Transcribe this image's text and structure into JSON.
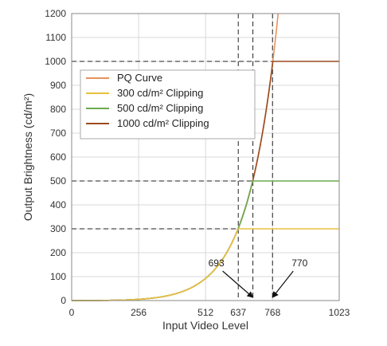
{
  "chart_data": {
    "type": "line",
    "title": "",
    "xlabel": "Input Video Level",
    "ylabel": "Output Brightness (cd/m²)",
    "xlim": [
      0,
      1023
    ],
    "ylim": [
      0,
      1200
    ],
    "x_ticks": [
      0,
      256,
      512,
      637,
      768,
      1023
    ],
    "y_ticks": [
      0,
      100,
      200,
      300,
      400,
      500,
      600,
      700,
      800,
      900,
      1000,
      1100,
      1200
    ],
    "grid": true,
    "legend_position": "upper-left",
    "series": [
      {
        "name": "PQ Curve",
        "color": "#e8935a",
        "kind": "pq"
      },
      {
        "name": "300 cd/m² Clipping",
        "color": "#e8c040",
        "kind": "clip",
        "clip": 300
      },
      {
        "name": "500 cd/m² Clipping",
        "color": "#6aab4f",
        "kind": "clip",
        "clip": 500
      },
      {
        "name": "1000 cd/m² Clipping",
        "color": "#9b4a1e",
        "kind": "clip",
        "clip": 1000
      }
    ],
    "reference_lines": {
      "vertical": [
        637,
        693,
        768
      ],
      "horizontal": [
        300,
        500,
        1000
      ]
    },
    "annotations": [
      {
        "text": "693",
        "target_x": 693,
        "target_y": 0,
        "label_side": "left"
      },
      {
        "text": "770",
        "target_x": 768,
        "target_y": 0,
        "label_side": "right"
      }
    ]
  }
}
